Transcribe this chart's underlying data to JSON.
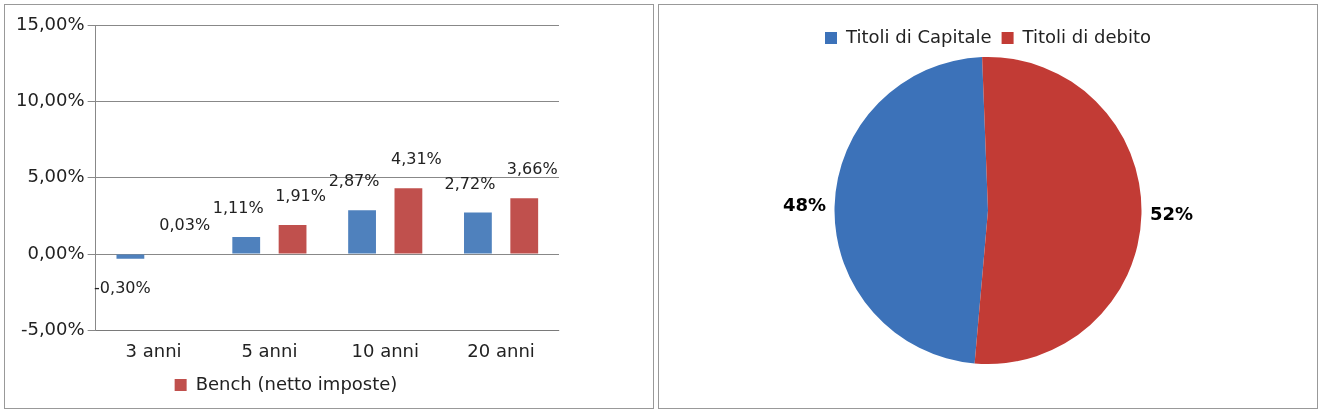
{
  "chart_data": [
    {
      "type": "bar",
      "categories": [
        "3 anni",
        "5 anni",
        "10 anni",
        "20 anni"
      ],
      "series": [
        {
          "color": "#4f81bd",
          "values": [
            -0.3,
            1.11,
            2.87,
            2.72
          ],
          "value_labels": [
            "-0,30%",
            "1,11%",
            "2,87%",
            "2,72%"
          ]
        },
        {
          "name": "Bench (netto imposte)",
          "color": "#c0504d",
          "values": [
            0.03,
            1.91,
            4.31,
            3.66
          ],
          "value_labels": [
            "0,03%",
            "1,91%",
            "4,31%",
            "3,66%"
          ]
        }
      ],
      "ylim": [
        -5,
        15
      ],
      "yticks": [
        {
          "value": -5,
          "label": "-5,00%"
        },
        {
          "value": 0,
          "label": "0,00%"
        },
        {
          "value": 5,
          "label": "5,00%"
        },
        {
          "value": 10,
          "label": "10,00%"
        },
        {
          "value": 15,
          "label": "15,00%"
        }
      ],
      "grid": "y",
      "legend": "bottom"
    },
    {
      "type": "pie",
      "categories": [
        "Titoli di Capitale",
        "Titoli di debito"
      ],
      "values": [
        48,
        52
      ],
      "colors": [
        "#3c72b9",
        "#c23b35"
      ],
      "value_labels": [
        "48%",
        "52%"
      ],
      "legend": "top"
    }
  ]
}
